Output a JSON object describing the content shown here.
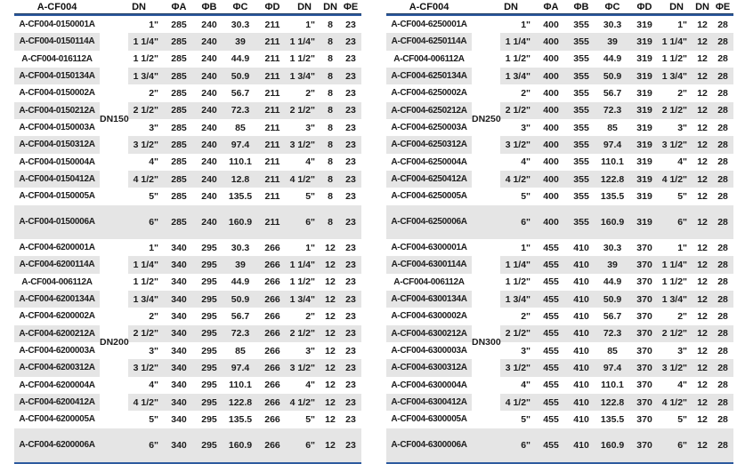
{
  "page": {
    "background": "#ffffff",
    "accent_line_color": "#2e5b9f",
    "accent_line_dark": "#17365d",
    "stripe_color": "#e5e5e5",
    "text_color": "#1c1c1c"
  },
  "columns": [
    "A-CF004",
    "DN",
    "ΦA",
    "ΦB",
    "ΦC",
    "ΦD",
    "DN",
    "DN",
    "ΦE"
  ],
  "tables": [
    {
      "groups": [
        {
          "dn_label": "DN150",
          "rows": [
            [
              "A-CF004-0150001A",
              "1\"",
              "285",
              "240",
              "30.3",
              "211",
              "1\"",
              "8",
              "23"
            ],
            [
              "A-CF004-0150114A",
              "1 1/4\"",
              "285",
              "240",
              "39",
              "211",
              "1 1/4\"",
              "8",
              "23"
            ],
            [
              "A-CF004-016112A",
              "1 1/2\"",
              "285",
              "240",
              "44.9",
              "211",
              "1 1/2\"",
              "8",
              "23"
            ],
            [
              "A-CF004-0150134A",
              "1 3/4\"",
              "285",
              "240",
              "50.9",
              "211",
              "1 3/4\"",
              "8",
              "23"
            ],
            [
              "A-CF004-0150002A",
              "2\"",
              "285",
              "240",
              "56.7",
              "211",
              "2\"",
              "8",
              "23"
            ],
            [
              "A-CF004-0150212A",
              "2 1/2\"",
              "285",
              "240",
              "72.3",
              "211",
              "2 1/2\"",
              "8",
              "23"
            ],
            [
              "A-CF004-0150003A",
              "3\"",
              "285",
              "240",
              "85",
              "211",
              "3\"",
              "8",
              "23"
            ],
            [
              "A-CF004-0150312A",
              "3 1/2\"",
              "285",
              "240",
              "97.4",
              "211",
              "3 1/2\"",
              "8",
              "23"
            ],
            [
              "A-CF004-0150004A",
              "4\"",
              "285",
              "240",
              "110.1",
              "211",
              "4\"",
              "8",
              "23"
            ],
            [
              "A-CF004-0150412A",
              "4 1/2\"",
              "285",
              "240",
              "12.8",
              "211",
              "4 1/2\"",
              "8",
              "23"
            ],
            [
              "A-CF004-0150005A",
              "5\"",
              "285",
              "240",
              "135.5",
              "211",
              "5\"",
              "8",
              "23"
            ],
            [
              "A-CF004-0150006A",
              "6\"",
              "285",
              "240",
              "160.9",
              "211",
              "6\"",
              "8",
              "23"
            ]
          ]
        },
        {
          "dn_label": "DN200",
          "rows": [
            [
              "A-CF004-6200001A",
              "1\"",
              "340",
              "295",
              "30.3",
              "266",
              "1\"",
              "12",
              "23"
            ],
            [
              "A-CF004-6200114A",
              "1 1/4\"",
              "340",
              "295",
              "39",
              "266",
              "1 1/4\"",
              "12",
              "23"
            ],
            [
              "A-CF004-006112A",
              "1 1/2\"",
              "340",
              "295",
              "44.9",
              "266",
              "1 1/2\"",
              "12",
              "23"
            ],
            [
              "A-CF004-6200134A",
              "1 3/4\"",
              "340",
              "295",
              "50.9",
              "266",
              "1 3/4\"",
              "12",
              "23"
            ],
            [
              "A-CF004-6200002A",
              "2\"",
              "340",
              "295",
              "56.7",
              "266",
              "2\"",
              "12",
              "23"
            ],
            [
              "A-CF004-6200212A",
              "2 1/2\"",
              "340",
              "295",
              "72.3",
              "266",
              "2 1/2\"",
              "12",
              "23"
            ],
            [
              "A-CF004-6200003A",
              "3\"",
              "340",
              "295",
              "85",
              "266",
              "3\"",
              "12",
              "23"
            ],
            [
              "A-CF004-6200312A",
              "3 1/2\"",
              "340",
              "295",
              "97.4",
              "266",
              "3 1/2\"",
              "12",
              "23"
            ],
            [
              "A-CF004-6200004A",
              "4\"",
              "340",
              "295",
              "110.1",
              "266",
              "4\"",
              "12",
              "23"
            ],
            [
              "A-CF004-6200412A",
              "4 1/2\"",
              "340",
              "295",
              "122.8",
              "266",
              "4 1/2\"",
              "12",
              "23"
            ],
            [
              "A-CF004-6200005A",
              "5\"",
              "340",
              "295",
              "135.5",
              "266",
              "5\"",
              "12",
              "23"
            ],
            [
              "A-CF004-6200006A",
              "6\"",
              "340",
              "295",
              "160.9",
              "266",
              "6\"",
              "12",
              "23"
            ]
          ]
        }
      ]
    },
    {
      "groups": [
        {
          "dn_label": "DN250",
          "rows": [
            [
              "A-CF004-6250001A",
              "1\"",
              "400",
              "355",
              "30.3",
              "319",
              "1\"",
              "12",
              "28"
            ],
            [
              "A-CF004-6250114A",
              "1 1/4\"",
              "400",
              "355",
              "39",
              "319",
              "1 1/4\"",
              "12",
              "28"
            ],
            [
              "A-CF004-006112A",
              "1 1/2\"",
              "400",
              "355",
              "44.9",
              "319",
              "1 1/2\"",
              "12",
              "28"
            ],
            [
              "A-CF004-6250134A",
              "1 3/4\"",
              "400",
              "355",
              "50.9",
              "319",
              "1 3/4\"",
              "12",
              "28"
            ],
            [
              "A-CF004-6250002A",
              "2\"",
              "400",
              "355",
              "56.7",
              "319",
              "2\"",
              "12",
              "28"
            ],
            [
              "A-CF004-6250212A",
              "2 1/2\"",
              "400",
              "355",
              "72.3",
              "319",
              "2 1/2\"",
              "12",
              "28"
            ],
            [
              "A-CF004-6250003A",
              "3\"",
              "400",
              "355",
              "85",
              "319",
              "3\"",
              "12",
              "28"
            ],
            [
              "A-CF004-6250312A",
              "3 1/2\"",
              "400",
              "355",
              "97.4",
              "319",
              "3 1/2\"",
              "12",
              "28"
            ],
            [
              "A-CF004-6250004A",
              "4\"",
              "400",
              "355",
              "110.1",
              "319",
              "4\"",
              "12",
              "28"
            ],
            [
              "A-CF004-6250412A",
              "4 1/2\"",
              "400",
              "355",
              "122.8",
              "319",
              "4 1/2\"",
              "12",
              "28"
            ],
            [
              "A-CF004-6250005A",
              "5\"",
              "400",
              "355",
              "135.5",
              "319",
              "5\"",
              "12",
              "28"
            ],
            [
              "A-CF004-6250006A",
              "6\"",
              "400",
              "355",
              "160.9",
              "319",
              "6\"",
              "12",
              "28"
            ]
          ]
        },
        {
          "dn_label": "DN300",
          "rows": [
            [
              "A-CF004-6300001A",
              "1\"",
              "455",
              "410",
              "30.3",
              "370",
              "1\"",
              "12",
              "28"
            ],
            [
              "A-CF004-6300114A",
              "1 1/4\"",
              "455",
              "410",
              "39",
              "370",
              "1 1/4\"",
              "12",
              "28"
            ],
            [
              "A-CF004-006112A",
              "1 1/2\"",
              "455",
              "410",
              "44.9",
              "370",
              "1 1/2\"",
              "12",
              "28"
            ],
            [
              "A-CF004-6300134A",
              "1 3/4\"",
              "455",
              "410",
              "50.9",
              "370",
              "1 3/4\"",
              "12",
              "28"
            ],
            [
              "A-CF004-6300002A",
              "2\"",
              "455",
              "410",
              "56.7",
              "370",
              "2\"",
              "12",
              "28"
            ],
            [
              "A-CF004-6300212A",
              "2 1/2\"",
              "455",
              "410",
              "72.3",
              "370",
              "2 1/2\"",
              "12",
              "28"
            ],
            [
              "A-CF004-6300003A",
              "3\"",
              "455",
              "410",
              "85",
              "370",
              "3\"",
              "12",
              "28"
            ],
            [
              "A-CF004-6300312A",
              "3 1/2\"",
              "455",
              "410",
              "97.4",
              "370",
              "3 1/2\"",
              "12",
              "28"
            ],
            [
              "A-CF004-6300004A",
              "4\"",
              "455",
              "410",
              "110.1",
              "370",
              "4\"",
              "12",
              "28"
            ],
            [
              "A-CF004-6300412A",
              "4 1/2\"",
              "455",
              "410",
              "122.8",
              "370",
              "4 1/2\"",
              "12",
              "28"
            ],
            [
              "A-CF004-6300005A",
              "5\"",
              "455",
              "410",
              "135.5",
              "370",
              "5\"",
              "12",
              "28"
            ],
            [
              "A-CF004-6300006A",
              "6\"",
              "455",
              "410",
              "160.9",
              "370",
              "6\"",
              "12",
              "28"
            ]
          ]
        }
      ]
    }
  ]
}
